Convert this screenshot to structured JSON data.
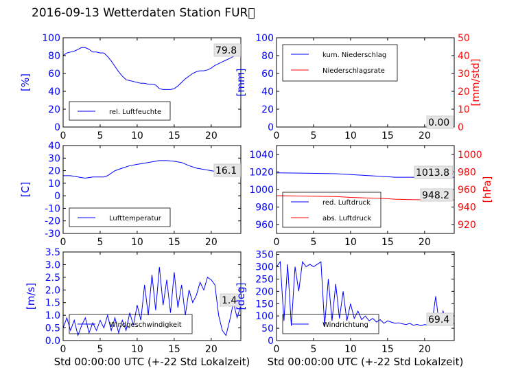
{
  "page": {
    "title": "2016-09-13 Wetterdaten Station FUR\u0000"
  },
  "colors": {
    "blue": "#0000ff",
    "red": "#ff0000",
    "annotation_bg": "#e6e6e6"
  },
  "chart_data": [
    {
      "type": "line",
      "panel": "top-left",
      "ylabel": "[%]",
      "xlim": [
        0,
        24
      ],
      "ylim": [
        0,
        100
      ],
      "xticks": [
        0,
        5,
        10,
        15,
        20
      ],
      "yticks": [
        0,
        20,
        40,
        60,
        80,
        100
      ],
      "legend": {
        "placement": "lower-left",
        "entries": [
          "rel. Luftfeuchte"
        ]
      },
      "annotation": "79.8",
      "series": [
        {
          "name": "rel. Luftfeuchte",
          "color": "#0000ff",
          "axis": "left",
          "x": [
            0,
            0.5,
            1,
            1.5,
            2,
            2.5,
            3,
            3.5,
            4,
            4.5,
            5,
            5.5,
            6,
            6.5,
            7,
            7.5,
            8,
            8.5,
            9,
            9.5,
            10,
            10.5,
            11,
            11.5,
            12,
            12.5,
            13,
            13.5,
            14,
            14.5,
            15,
            15.5,
            16,
            16.5,
            17,
            17.5,
            18,
            18.5,
            19,
            19.5,
            20,
            20.5,
            21,
            21.5,
            22,
            22.5,
            23,
            23.5,
            24
          ],
          "y": [
            80,
            83,
            84,
            85,
            87,
            89,
            89,
            87,
            84,
            84,
            83,
            83,
            79,
            74,
            68,
            62,
            57,
            53,
            52,
            51,
            50,
            49,
            49,
            48,
            48,
            47,
            43,
            42,
            42,
            42,
            43,
            46,
            50,
            54,
            57,
            60,
            62,
            63,
            63,
            64,
            66,
            69,
            71,
            73,
            75,
            77,
            79,
            80,
            80
          ]
        }
      ]
    },
    {
      "type": "line",
      "panel": "top-right",
      "ylabel": "[mm]",
      "y2label": "[mm/std]",
      "xlim": [
        0,
        24
      ],
      "ylim": [
        0,
        100
      ],
      "y2lim": [
        0,
        50
      ],
      "xticks": [
        0,
        5,
        10,
        15,
        20
      ],
      "yticks": [
        0,
        20,
        40,
        60,
        80,
        100
      ],
      "y2ticks": [
        0,
        10,
        20,
        30,
        40,
        50
      ],
      "legend": {
        "placement": "upper-left",
        "entries": [
          "kum. Niederschlag",
          "Niederschlagsrate"
        ]
      },
      "annotation": "0.00",
      "series": [
        {
          "name": "kum. Niederschlag",
          "color": "#0000ff",
          "axis": "left",
          "x": [
            0,
            24
          ],
          "y": [
            0,
            0
          ]
        },
        {
          "name": "Niederschlagsrate",
          "color": "#ff0000",
          "axis": "right",
          "x": [
            0,
            24
          ],
          "y": [
            0,
            0
          ]
        }
      ]
    },
    {
      "type": "line",
      "panel": "middle-left",
      "ylabel": "[C]",
      "xlim": [
        0,
        24
      ],
      "ylim": [
        -30,
        40
      ],
      "xticks": [
        0,
        5,
        10,
        15,
        20
      ],
      "yticks": [
        -30,
        -20,
        -10,
        0,
        10,
        20,
        30,
        40
      ],
      "legend": {
        "placement": "lower-left",
        "entries": [
          "Lufttemperatur"
        ]
      },
      "annotation": "16.1",
      "series": [
        {
          "name": "Lufttemperatur",
          "color": "#0000ff",
          "axis": "left",
          "x": [
            0,
            1,
            2,
            3,
            4,
            5,
            5.5,
            6,
            7,
            8,
            9,
            10,
            11,
            12,
            13,
            14,
            15,
            16,
            17,
            18,
            19,
            20,
            21,
            22,
            23,
            24
          ],
          "y": [
            16,
            16,
            15,
            14,
            15,
            15,
            15,
            16,
            20,
            22,
            24,
            25,
            26,
            27,
            28,
            28,
            27.5,
            26.5,
            24,
            22,
            21,
            20,
            19,
            18,
            17,
            16
          ]
        }
      ]
    },
    {
      "type": "line",
      "panel": "middle-right",
      "y2label": "[hPa]",
      "xlim": [
        0,
        24
      ],
      "ylim": [
        950,
        1050
      ],
      "y2lim": [
        910,
        1010
      ],
      "xticks": [
        0,
        5,
        10,
        15,
        20
      ],
      "yticks": [
        960,
        980,
        1000,
        1020,
        1040
      ],
      "y2ticks": [
        920,
        940,
        960,
        980,
        1000
      ],
      "legend": {
        "placement": "lower-left",
        "entries": [
          "red. Luftdruck",
          "abs. Luftdruck"
        ]
      },
      "annotations": [
        "1013.8",
        "948.2"
      ],
      "series": [
        {
          "name": "red. Luftdruck",
          "color": "#0000ff",
          "axis": "left",
          "x": [
            0,
            4,
            8,
            10,
            12,
            14,
            16,
            18,
            20,
            22,
            24
          ],
          "y": [
            1019,
            1018.5,
            1018,
            1017,
            1016,
            1015,
            1014,
            1014,
            1014,
            1014,
            1013.8
          ]
        },
        {
          "name": "abs. Luftdruck",
          "color": "#ff0000",
          "axis": "right",
          "x": [
            0,
            4,
            8,
            10,
            12,
            14,
            16,
            18,
            20,
            22,
            24
          ],
          "y": [
            953,
            952.5,
            952,
            951,
            950.5,
            950,
            949,
            948.5,
            948.3,
            948.2,
            948.2
          ]
        }
      ]
    },
    {
      "type": "line",
      "panel": "bottom-left",
      "ylabel": "[m/s]",
      "xlabel": "Std 00:00:00 UTC (+-22 Std Lokalzeit)",
      "xlim": [
        0,
        24
      ],
      "ylim": [
        0,
        3.5
      ],
      "xticks": [
        0,
        5,
        10,
        15,
        20
      ],
      "yticks": [
        0.0,
        0.5,
        1.0,
        1.5,
        2.0,
        2.5,
        3.0,
        3.5
      ],
      "legend": {
        "placement": "lower-left",
        "entries": [
          "Windgeschwindigkeit"
        ]
      },
      "annotation": "1.4",
      "series": [
        {
          "name": "Windgeschwindigkeit",
          "color": "#0000ff",
          "axis": "left",
          "x": [
            0,
            0.5,
            1,
            1.5,
            2,
            2.5,
            3,
            3.5,
            4,
            4.5,
            5,
            5.5,
            6,
            6.5,
            7,
            7.5,
            8,
            8.5,
            9,
            9.5,
            10,
            10.5,
            11,
            11.5,
            12,
            12.5,
            13,
            13.5,
            14,
            14.5,
            15,
            15.5,
            16,
            16.5,
            17,
            17.5,
            18,
            18.5,
            19,
            19.5,
            20,
            20.5,
            21,
            21.5,
            22,
            22.5,
            23,
            23.5,
            24
          ],
          "y": [
            0.5,
            0.9,
            0.4,
            0.8,
            0.2,
            0.6,
            0.9,
            0.3,
            0.7,
            0.4,
            0.8,
            0.5,
            1.0,
            0.4,
            0.9,
            0.3,
            0.8,
            0.4,
            1.1,
            0.6,
            1.4,
            0.8,
            2.2,
            1.0,
            2.6,
            1.2,
            2.9,
            1.4,
            2.4,
            1.1,
            2.7,
            1.3,
            2.2,
            1.0,
            2.0,
            1.5,
            1.8,
            2.3,
            2.0,
            2.5,
            2.4,
            2.2,
            1.0,
            0.4,
            0.2,
            0.8,
            1.5,
            0.9,
            1.4
          ]
        }
      ]
    },
    {
      "type": "line",
      "panel": "bottom-right",
      "ylabel": "[deg]",
      "xlabel": "Std 00:00:00 UTC (+-22 Std Lokalzeit)",
      "xlim": [
        0,
        24
      ],
      "ylim": [
        0,
        360
      ],
      "xticks": [
        0,
        5,
        10,
        15,
        20
      ],
      "yticks": [
        0,
        50,
        100,
        150,
        200,
        250,
        300,
        350
      ],
      "legend": {
        "placement": "lower-left",
        "entries": [
          "Windrichtung"
        ]
      },
      "annotation": "69.4",
      "series": [
        {
          "name": "Windrichtung",
          "color": "#0000ff",
          "axis": "left",
          "x": [
            0,
            0.5,
            1,
            1.5,
            2,
            2.5,
            3,
            3.5,
            4,
            4.5,
            5,
            5.5,
            6,
            6.5,
            7,
            7.5,
            8,
            8.5,
            9,
            9.5,
            10,
            10.5,
            11,
            11.5,
            12,
            12.5,
            13,
            13.5,
            14,
            14.5,
            15,
            15.5,
            16,
            16.5,
            17,
            17.5,
            18,
            18.5,
            19,
            19.5,
            20,
            20.5,
            21,
            21.5,
            22,
            22.5,
            23,
            23.5,
            24
          ],
          "y": [
            300,
            320,
            80,
            310,
            60,
            300,
            200,
            320,
            300,
            310,
            300,
            310,
            320,
            60,
            250,
            80,
            230,
            90,
            200,
            80,
            150,
            90,
            120,
            85,
            100,
            80,
            90,
            75,
            85,
            70,
            80,
            75,
            70,
            72,
            68,
            65,
            70,
            62,
            66,
            60,
            65,
            62,
            70,
            180,
            60,
            120,
            65,
            70,
            69.4
          ]
        }
      ]
    }
  ]
}
